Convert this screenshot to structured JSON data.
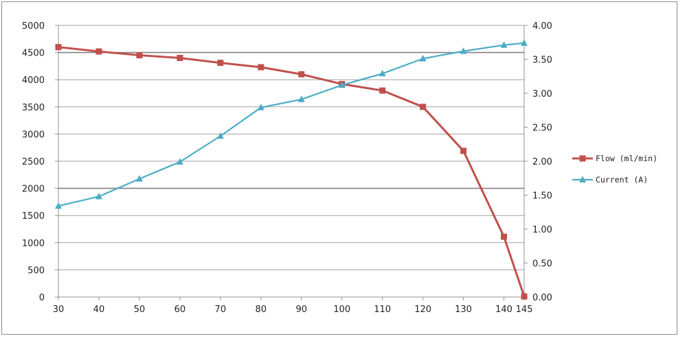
{
  "chart_data": {
    "type": "line",
    "x": [
      30,
      40,
      50,
      60,
      70,
      80,
      90,
      100,
      110,
      120,
      130,
      140,
      145
    ],
    "x_ticks": [
      "30",
      "40",
      "50",
      "60",
      "70",
      "80",
      "90",
      "100",
      "110",
      "120",
      "130",
      "140",
      "145"
    ],
    "y_left_ticks": [
      "0",
      "500",
      "1000",
      "1500",
      "2000",
      "2500",
      "3000",
      "3500",
      "4000",
      "4500",
      "5000"
    ],
    "y_right_ticks": [
      "0.00",
      "0.50",
      "1.00",
      "1.50",
      "2.00",
      "2.50",
      "3.00",
      "3.50",
      "4.00"
    ],
    "ylim_left": [
      0,
      5000
    ],
    "ylim_right": [
      0,
      4
    ],
    "grid": "horizontal",
    "legend_position": "right",
    "series": [
      {
        "name": "Flow (ml/min)",
        "axis": "left",
        "marker": "square",
        "color": "#c0504d",
        "values": [
          4600,
          4520,
          4450,
          4400,
          4310,
          4230,
          4100,
          3920,
          3800,
          3500,
          2690,
          1110,
          10
        ]
      },
      {
        "name": "Current (A)",
        "axis": "right",
        "marker": "triangle",
        "color": "#4bacc6",
        "values": [
          1.34,
          1.48,
          1.74,
          1.99,
          2.37,
          2.79,
          2.91,
          3.12,
          3.29,
          3.51,
          3.62,
          3.71,
          3.74
        ]
      }
    ]
  }
}
